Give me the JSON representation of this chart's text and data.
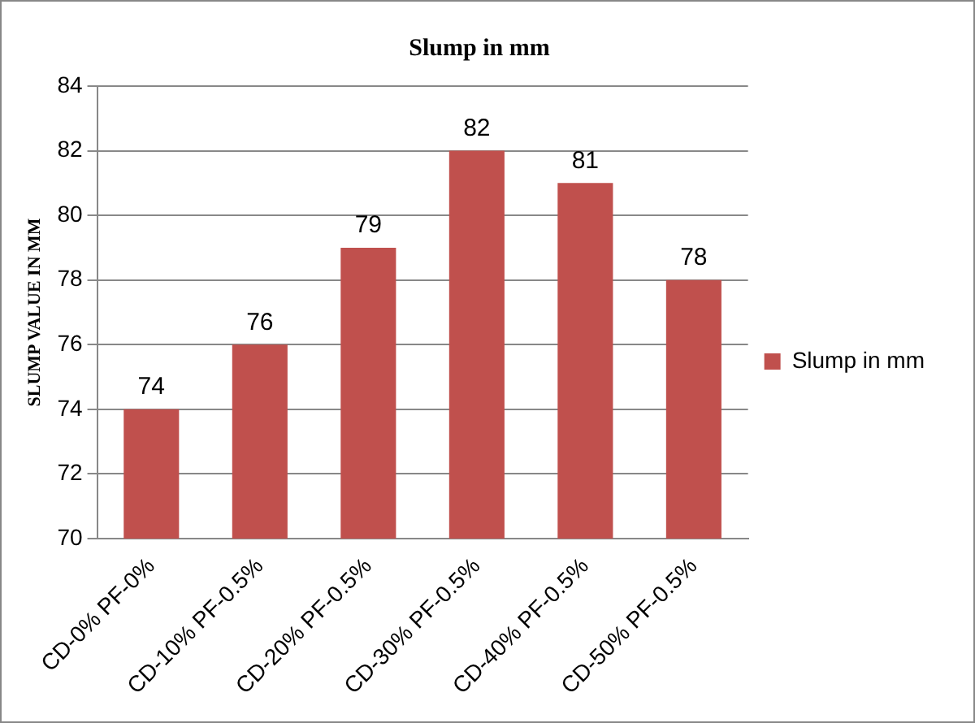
{
  "chart_data": {
    "type": "bar",
    "title": "Slump in mm",
    "ylabel": "SLUMP VALUE IN MM",
    "categories": [
      "CD-0% PF-0%",
      "CD-10% PF-0.5%",
      "CD-20% PF-0.5%",
      "CD-30% PF-0.5%",
      "CD-40% PF-0.5%",
      "CD-50% PF-0.5%"
    ],
    "series": [
      {
        "name": "Slump in mm",
        "color": "#c0504d",
        "values": [
          74,
          76,
          79,
          82,
          81,
          78
        ]
      }
    ],
    "ylim": [
      70,
      84
    ],
    "yticks": [
      70,
      72,
      74,
      76,
      78,
      80,
      82,
      84
    ],
    "grid": "y",
    "legend": "right",
    "data_labels": true
  }
}
